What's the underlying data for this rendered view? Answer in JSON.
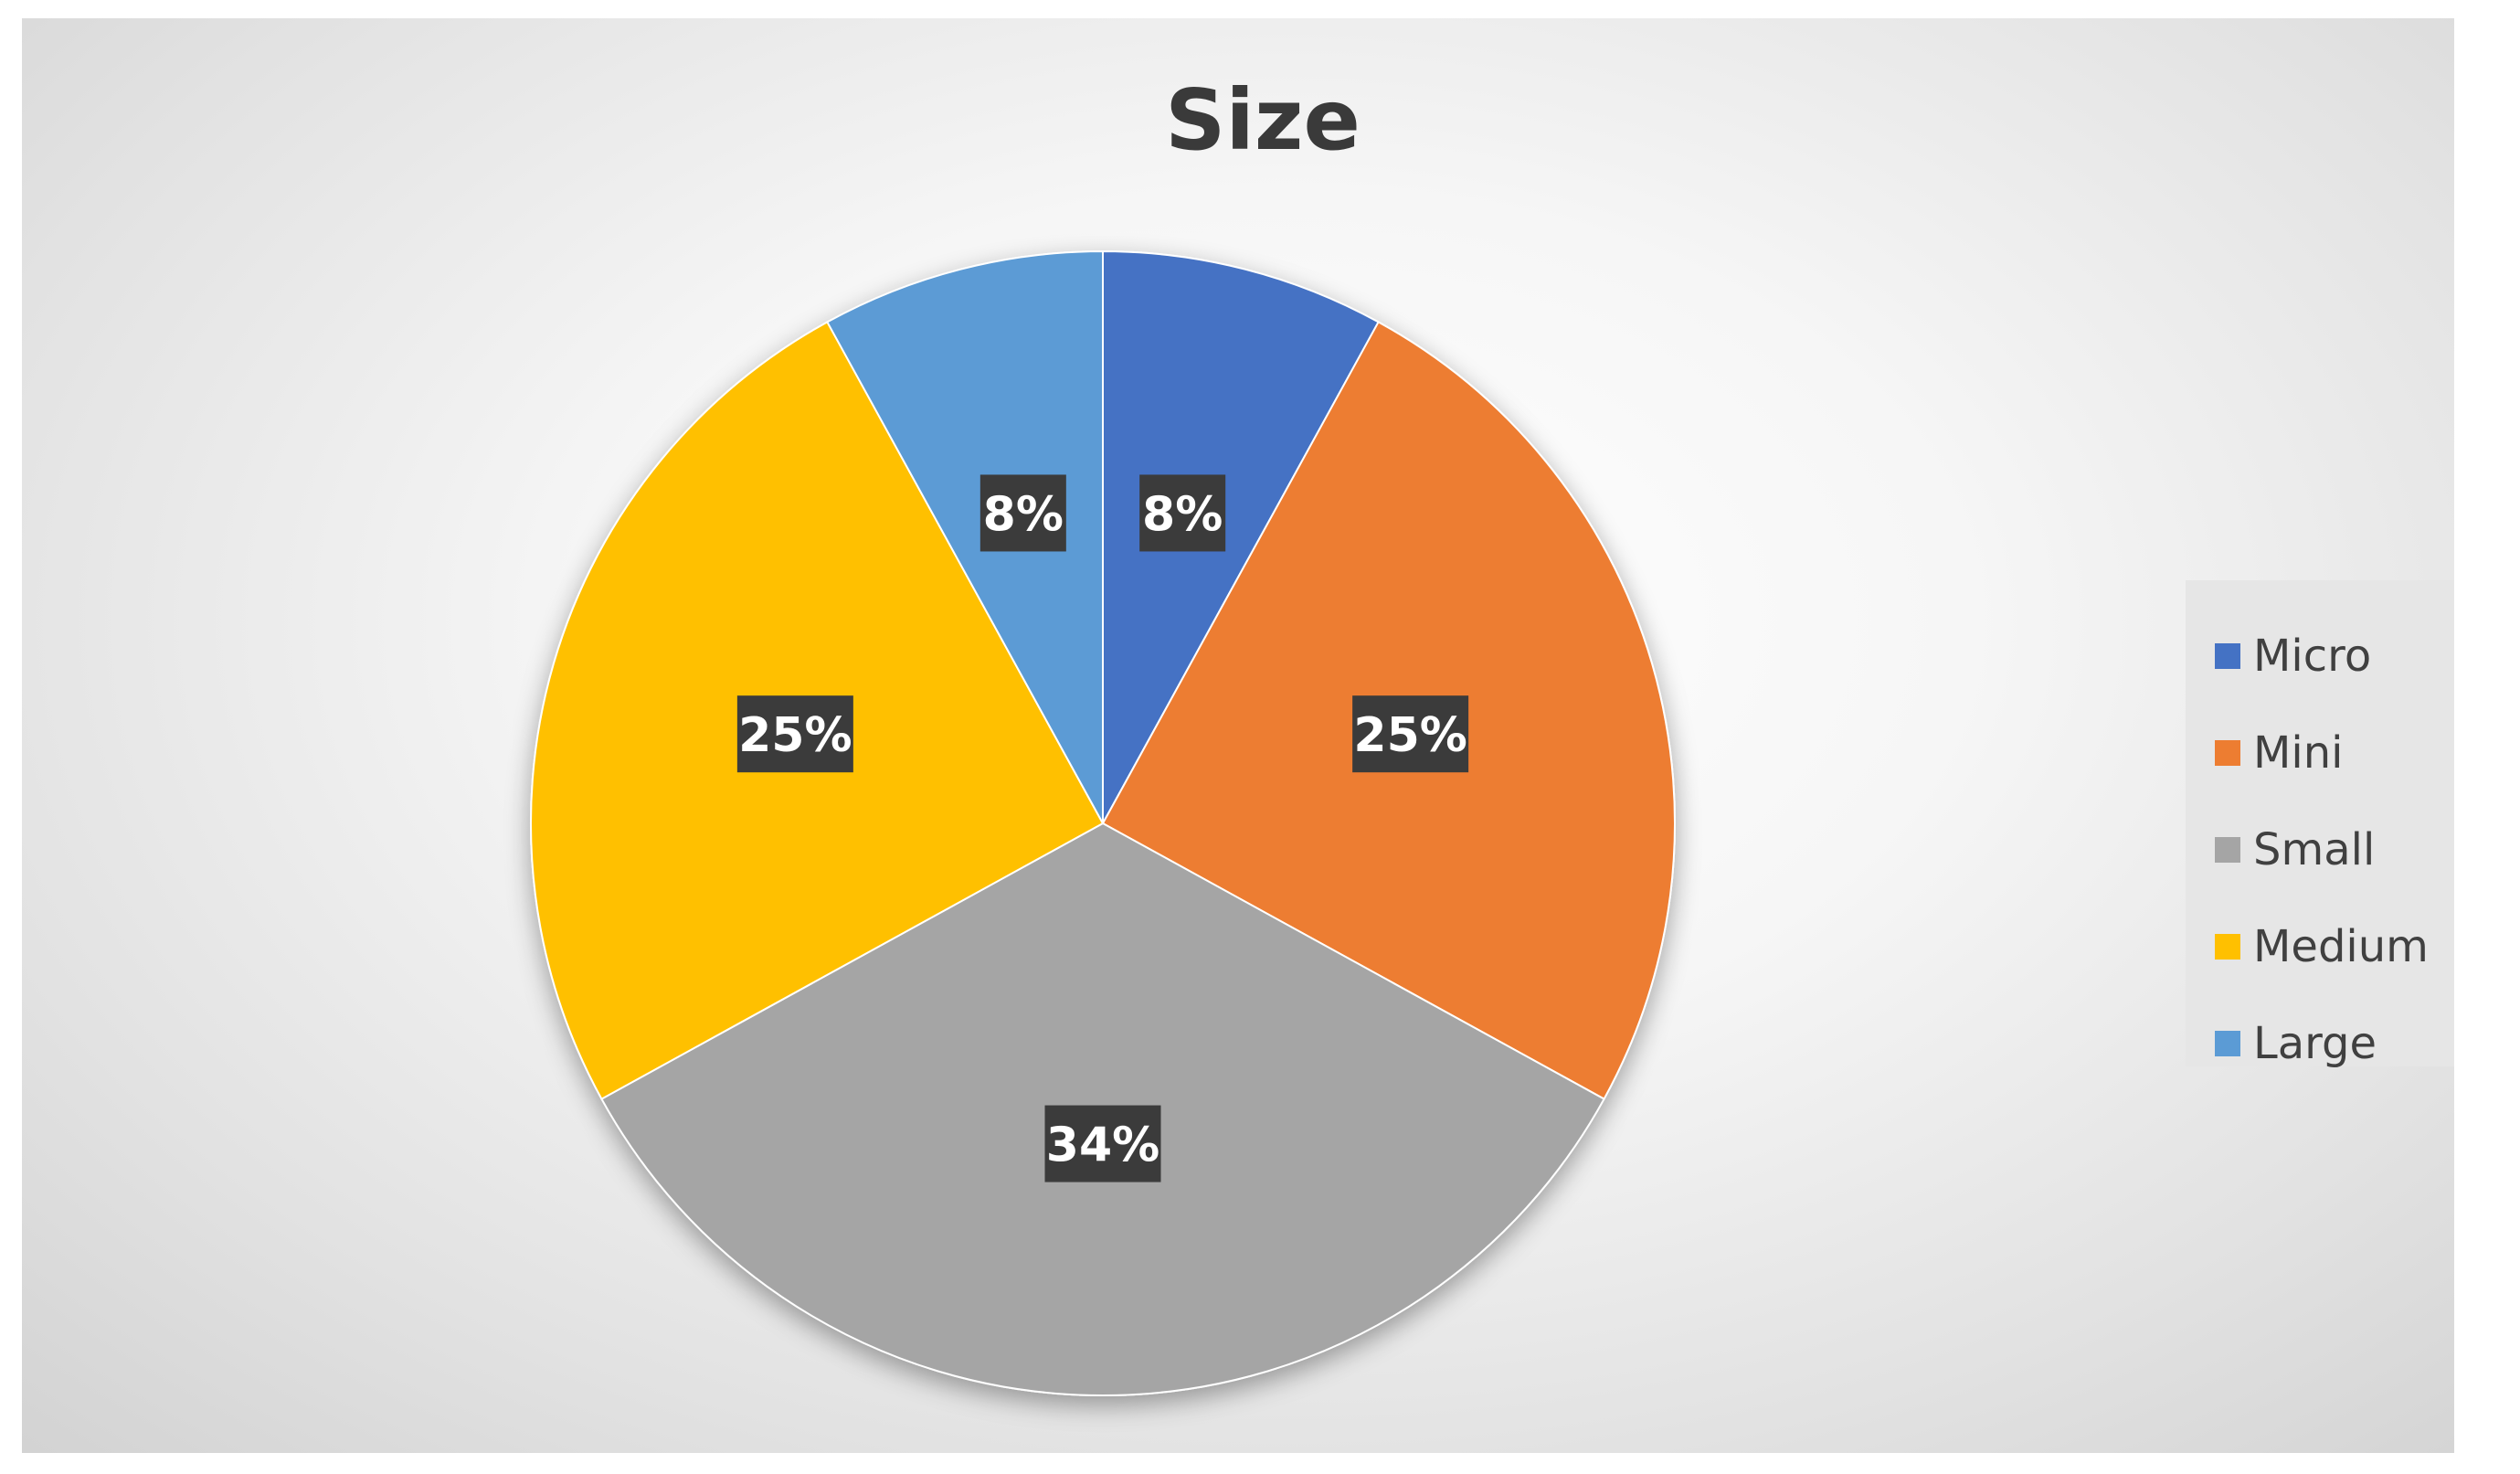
{
  "chart_data": {
    "type": "pie",
    "title": "Size",
    "categories": [
      "Micro",
      "Mini",
      "Small",
      "Medium",
      "Large"
    ],
    "values": [
      8,
      25,
      34,
      25,
      8
    ],
    "value_labels": [
      "8%",
      "25%",
      "34%",
      "25%",
      "8%"
    ],
    "colors": [
      "#4472c4",
      "#ed7d31",
      "#a5a5a5",
      "#ffc000",
      "#5b9bd5"
    ],
    "start_angle_deg": 0,
    "direction": "clockwise",
    "legend_position": "right"
  },
  "legend": {
    "items": [
      {
        "label": "Micro",
        "color": "#4472c4"
      },
      {
        "label": "Mini",
        "color": "#ed7d31"
      },
      {
        "label": "Small",
        "color": "#a5a5a5"
      },
      {
        "label": "Medium",
        "color": "#ffc000"
      },
      {
        "label": "Large",
        "color": "#5b9bd5"
      }
    ]
  }
}
